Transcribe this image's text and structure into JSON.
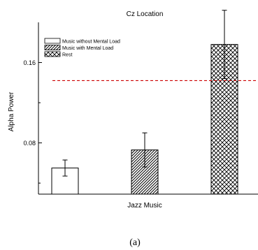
{
  "chart_data": {
    "type": "bar",
    "title": "Cz Location",
    "xlabel": "Jazz Music",
    "ylabel": "Alpha Power",
    "caption": "(a)",
    "categories": [
      "",
      "",
      ""
    ],
    "ylim": [
      0.029,
      0.2
    ],
    "yticks": [
      0.08,
      0.16
    ],
    "ytick_labels": [
      "0.08",
      "0.16"
    ],
    "series": [
      {
        "name": "Music without Mental Load",
        "pattern": "none",
        "value": 0.055,
        "error": 0.008
      },
      {
        "name": "Music with Mental Load",
        "pattern": "diagonal-hatch",
        "value": 0.073,
        "error": 0.017
      },
      {
        "name": "Rest",
        "pattern": "crosshatch",
        "value": 0.178,
        "error": 0.034
      }
    ],
    "reference_line": {
      "value": 0.142,
      "style": "dashed",
      "color": "#cc0000"
    },
    "legend_placement": "top-left",
    "grid": false
  },
  "colors": {
    "axis": "#000000",
    "bar_fill": "#ffffff",
    "reference_line": "#cc0000"
  }
}
